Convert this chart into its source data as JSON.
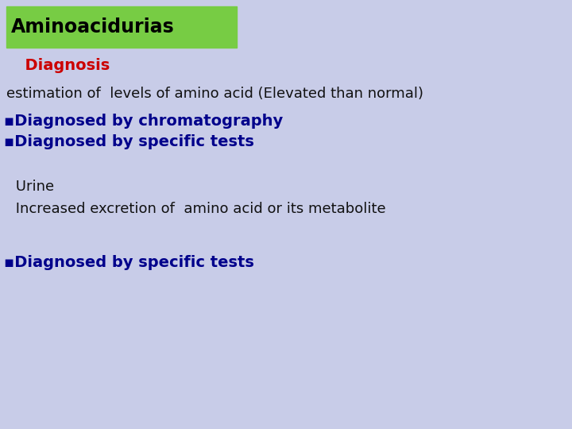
{
  "background_color": "#c8cce8",
  "title_box_color": "#77cc44",
  "title_text": "Aminoacidurias",
  "title_text_color": "#000000",
  "title_fontsize": 17,
  "subtitle_text": "  Diagnosis",
  "subtitle_color": "#cc0000",
  "subtitle_fontsize": 14,
  "line1_text": "estimation of  levels of amino acid (Elevated than normal)",
  "line1_color": "#111111",
  "line1_fontsize": 13,
  "bullet1_text": "▪Diagnosed by chromatography",
  "bullet2_text": "▪Diagnosed by specific tests",
  "bullet_color": "#00008b",
  "bullet_fontsize": 14,
  "urine_text": " Urine",
  "urine_color": "#111111",
  "urine_fontsize": 13,
  "excretion_text": " Increased excretion of  amino acid or its metabolite",
  "excretion_color": "#111111",
  "excretion_fontsize": 13,
  "bullet3_text": "▪Diagnosed by specific tests",
  "bullet3_color": "#00008b",
  "bullet3_fontsize": 14,
  "fig_width": 7.2,
  "fig_height": 5.4,
  "dpi": 100
}
